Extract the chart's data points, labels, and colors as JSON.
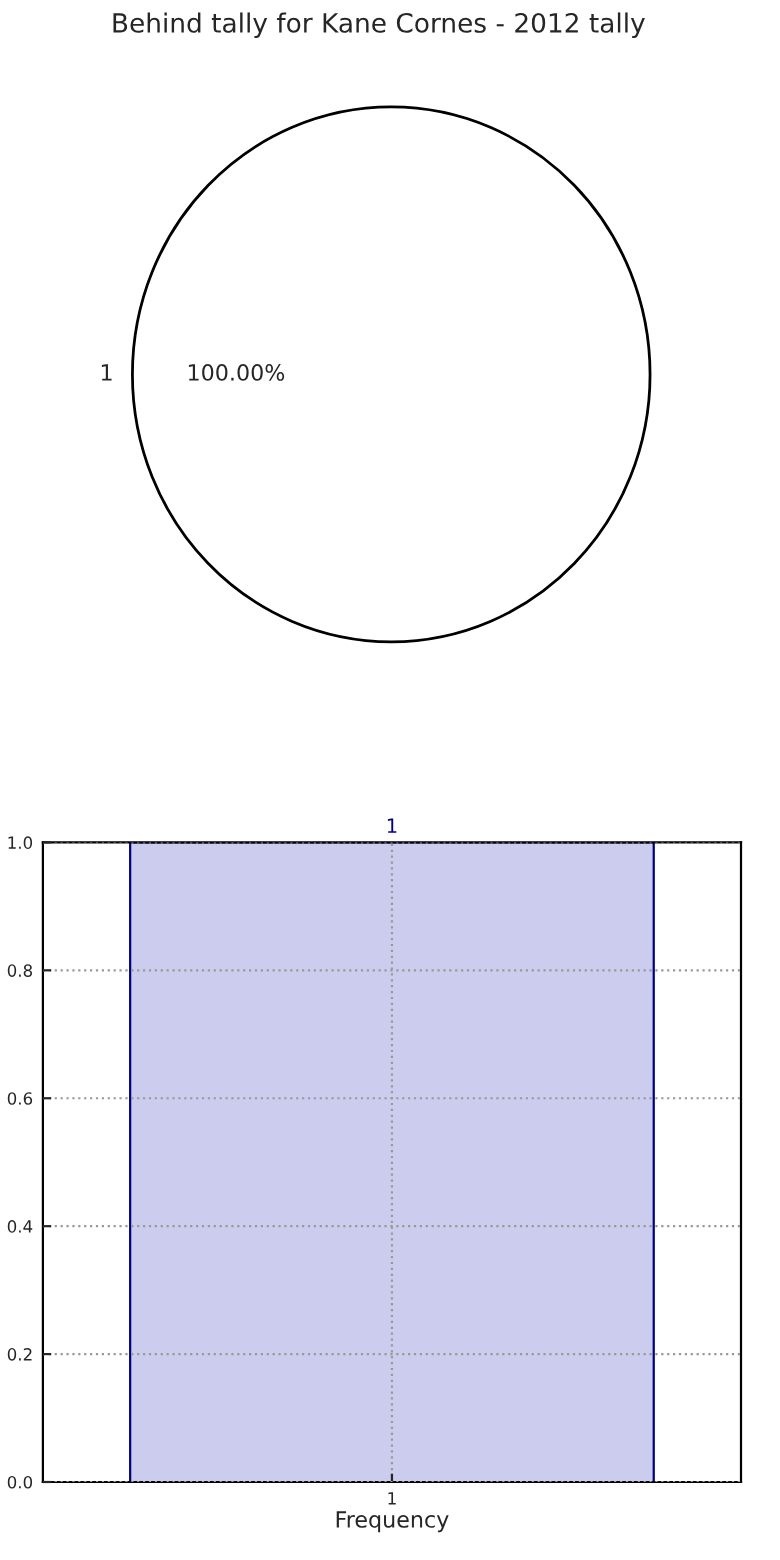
{
  "chart_data": [
    {
      "type": "pie",
      "title": "Behind tally for Kane Cornes - 2012 tally",
      "categories": [
        "1"
      ],
      "values": [
        100
      ],
      "colors": [
        "#ffffff"
      ],
      "value_labels": [
        "100.00%"
      ]
    },
    {
      "type": "bar",
      "xlabel": "Frequency",
      "categories": [
        "1"
      ],
      "values": [
        1
      ],
      "colors": [
        "#ccccee"
      ],
      "value_labels": [
        "1"
      ],
      "ylim": [
        0,
        1
      ],
      "yticks": [
        {
          "value": 0,
          "label": "0.0"
        },
        {
          "value": 0.2,
          "label": "0.2"
        },
        {
          "value": 0.4,
          "label": "0.4"
        },
        {
          "value": 0.6,
          "label": "0.6"
        },
        {
          "value": 0.8,
          "label": "0.8"
        },
        {
          "value": 1,
          "label": "1.0"
        }
      ],
      "grid": true
    }
  ]
}
